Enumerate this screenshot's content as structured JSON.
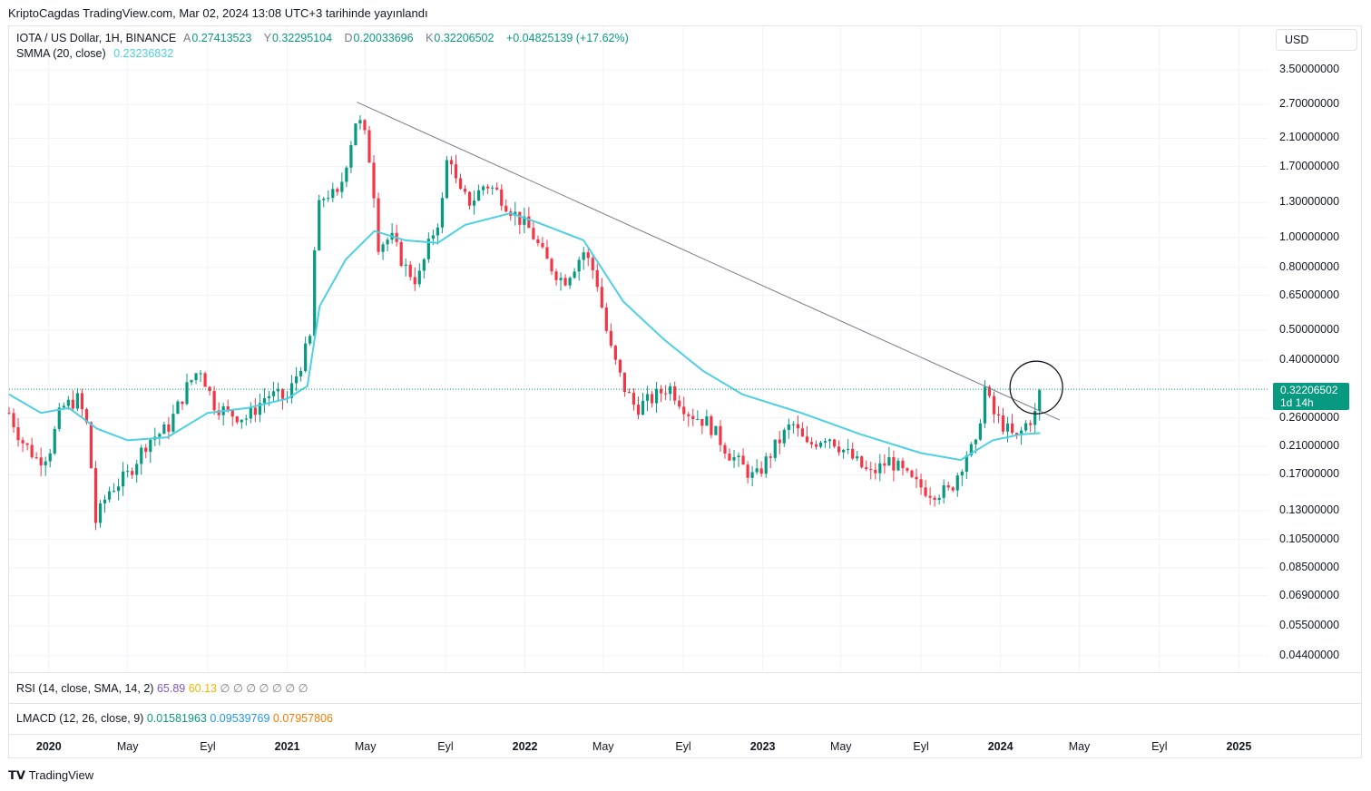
{
  "publish_line": "KriptoCagdas TradingView.com, Mar 02, 2024 13:08 UTC+3 tarihinde yayınlandı",
  "legend": {
    "symbol": "IOTA / US Dollar, 1H, BINANCE",
    "open_label": "A",
    "open": "0.27413523",
    "high_label": "Y",
    "high": "0.32295104",
    "low_label": "D",
    "low": "0.20033696",
    "close_label": "K",
    "close": "0.32206502",
    "change": "+0.04825139 (+17.62%)",
    "smma_label": "SMMA (20, close)",
    "smma_value": "0.23236832"
  },
  "rsi": {
    "label": "RSI (14, close, SMA, 14, 2)",
    "v1": "65.89",
    "v2": "60.13",
    "extra": "∅ ∅ ∅ ∅ ∅ ∅ ∅"
  },
  "lmacd": {
    "label": "LMACD (12, 26, close, 9)",
    "v1": "0.01581963",
    "v2": "0.09539769",
    "v3": "0.07957806"
  },
  "currency": "USD",
  "price_tag": {
    "value": "0.32206502",
    "countdown": "1d 14h"
  },
  "branding": "TradingView",
  "colors": {
    "up": "#089981",
    "down": "#f23645",
    "smma": "#4dd0e1",
    "trendline": "#787b86",
    "grid": "#f0f3fa"
  },
  "chart_data": {
    "type": "candlestick",
    "y_scale": "log",
    "y_ticks": [
      "3.50000000",
      "2.70000000",
      "2.10000000",
      "1.70000000",
      "1.30000000",
      "1.00000000",
      "0.80000000",
      "0.65000000",
      "0.50000000",
      "0.40000000",
      "0.26000000",
      "0.21000000",
      "0.17000000",
      "0.13000000",
      "0.10500000",
      "0.08500000",
      "0.06900000",
      "0.05500000",
      "0.04400000"
    ],
    "x_ticks": [
      {
        "label": "2020",
        "date": "2020-01-01",
        "year": true
      },
      {
        "label": "May",
        "date": "2020-05-01"
      },
      {
        "label": "Eyl",
        "date": "2020-09-01"
      },
      {
        "label": "2021",
        "date": "2021-01-01",
        "year": true
      },
      {
        "label": "May",
        "date": "2021-05-01"
      },
      {
        "label": "Eyl",
        "date": "2021-09-01"
      },
      {
        "label": "2022",
        "date": "2022-01-01",
        "year": true
      },
      {
        "label": "May",
        "date": "2022-05-01"
      },
      {
        "label": "Eyl",
        "date": "2022-09-01"
      },
      {
        "label": "2023",
        "date": "2023-01-01",
        "year": true
      },
      {
        "label": "May",
        "date": "2023-05-01"
      },
      {
        "label": "Eyl",
        "date": "2023-09-01"
      },
      {
        "label": "2024",
        "date": "2024-01-01",
        "year": true
      },
      {
        "label": "May",
        "date": "2024-05-01"
      },
      {
        "label": "Eyl",
        "date": "2024-09-01"
      },
      {
        "label": "2025",
        "date": "2025-01-01",
        "year": true
      }
    ],
    "price_path": [
      [
        "2019-11-01",
        0.27
      ],
      [
        "2019-11-20",
        0.22
      ],
      [
        "2019-12-15",
        0.19
      ],
      [
        "2020-01-01",
        0.2
      ],
      [
        "2020-01-20",
        0.28
      ],
      [
        "2020-02-15",
        0.3
      ],
      [
        "2020-03-01",
        0.24
      ],
      [
        "2020-03-13",
        0.12
      ],
      [
        "2020-04-01",
        0.15
      ],
      [
        "2020-05-01",
        0.17
      ],
      [
        "2020-06-01",
        0.22
      ],
      [
        "2020-07-01",
        0.24
      ],
      [
        "2020-08-01",
        0.33
      ],
      [
        "2020-08-20",
        0.38
      ],
      [
        "2020-09-10",
        0.29
      ],
      [
        "2020-10-01",
        0.27
      ],
      [
        "2020-11-01",
        0.26
      ],
      [
        "2020-12-01",
        0.31
      ],
      [
        "2021-01-01",
        0.3
      ],
      [
        "2021-01-20",
        0.38
      ],
      [
        "2021-02-05",
        0.47
      ],
      [
        "2021-02-15",
        1.2
      ],
      [
        "2021-03-01",
        1.4
      ],
      [
        "2021-03-20",
        1.35
      ],
      [
        "2021-04-10",
        2.1
      ],
      [
        "2021-04-18",
        2.5
      ],
      [
        "2021-05-01",
        2.1
      ],
      [
        "2021-05-12",
        1.6
      ],
      [
        "2021-05-20",
        0.95
      ],
      [
        "2021-06-10",
        1.0
      ],
      [
        "2021-07-01",
        0.8
      ],
      [
        "2021-07-20",
        0.72
      ],
      [
        "2021-08-10",
        1.0
      ],
      [
        "2021-08-25",
        1.2
      ],
      [
        "2021-09-06",
        2.0
      ],
      [
        "2021-09-20",
        1.4
      ],
      [
        "2021-10-10",
        1.3
      ],
      [
        "2021-11-01",
        1.5
      ],
      [
        "2021-11-20",
        1.4
      ],
      [
        "2021-12-15",
        1.2
      ],
      [
        "2022-01-10",
        1.05
      ],
      [
        "2022-02-01",
        0.85
      ],
      [
        "2022-03-01",
        0.72
      ],
      [
        "2022-04-01",
        0.9
      ],
      [
        "2022-04-20",
        0.75
      ],
      [
        "2022-05-10",
        0.45
      ],
      [
        "2022-06-01",
        0.33
      ],
      [
        "2022-06-20",
        0.28
      ],
      [
        "2022-07-15",
        0.3
      ],
      [
        "2022-08-10",
        0.33
      ],
      [
        "2022-09-10",
        0.27
      ],
      [
        "2022-10-10",
        0.25
      ],
      [
        "2022-11-10",
        0.2
      ],
      [
        "2022-12-20",
        0.165
      ],
      [
        "2023-01-20",
        0.21
      ],
      [
        "2023-02-15",
        0.25
      ],
      [
        "2023-03-10",
        0.21
      ],
      [
        "2023-04-10",
        0.23
      ],
      [
        "2023-05-10",
        0.2
      ],
      [
        "2023-06-15",
        0.17
      ],
      [
        "2023-07-15",
        0.19
      ],
      [
        "2023-08-20",
        0.16
      ],
      [
        "2023-09-15",
        0.15
      ],
      [
        "2023-10-15",
        0.15
      ],
      [
        "2023-11-10",
        0.2
      ],
      [
        "2023-11-25",
        0.21
      ],
      [
        "2023-12-07",
        0.33
      ],
      [
        "2023-12-20",
        0.27
      ],
      [
        "2024-01-10",
        0.24
      ],
      [
        "2024-01-25",
        0.22
      ],
      [
        "2024-02-10",
        0.25
      ],
      [
        "2024-02-25",
        0.27
      ],
      [
        "2024-03-02",
        0.322
      ]
    ],
    "smma_path": [
      [
        "2019-11-01",
        0.31
      ],
      [
        "2019-12-20",
        0.27
      ],
      [
        "2020-02-01",
        0.28
      ],
      [
        "2020-03-15",
        0.24
      ],
      [
        "2020-05-01",
        0.22
      ],
      [
        "2020-07-01",
        0.225
      ],
      [
        "2020-09-01",
        0.27
      ],
      [
        "2020-11-01",
        0.28
      ],
      [
        "2021-01-01",
        0.3
      ],
      [
        "2021-02-01",
        0.33
      ],
      [
        "2021-02-20",
        0.6
      ],
      [
        "2021-04-01",
        0.85
      ],
      [
        "2021-05-15",
        1.05
      ],
      [
        "2021-07-01",
        0.98
      ],
      [
        "2021-08-20",
        0.96
      ],
      [
        "2021-10-01",
        1.1
      ],
      [
        "2021-12-10",
        1.2
      ],
      [
        "2022-01-20",
        1.12
      ],
      [
        "2022-04-01",
        0.98
      ],
      [
        "2022-06-01",
        0.62
      ],
      [
        "2022-08-01",
        0.47
      ],
      [
        "2022-10-01",
        0.37
      ],
      [
        "2022-12-01",
        0.31
      ],
      [
        "2023-03-01",
        0.27
      ],
      [
        "2023-06-01",
        0.23
      ],
      [
        "2023-09-01",
        0.2
      ],
      [
        "2023-11-01",
        0.19
      ],
      [
        "2023-12-20",
        0.22
      ],
      [
        "2024-02-01",
        0.23
      ],
      [
        "2024-03-02",
        0.2323
      ]
    ],
    "trendline": {
      "start": [
        "2021-04-18",
        2.75
      ],
      "end": [
        "2024-04-01",
        0.256
      ]
    },
    "last_price": 0.32206502
  }
}
